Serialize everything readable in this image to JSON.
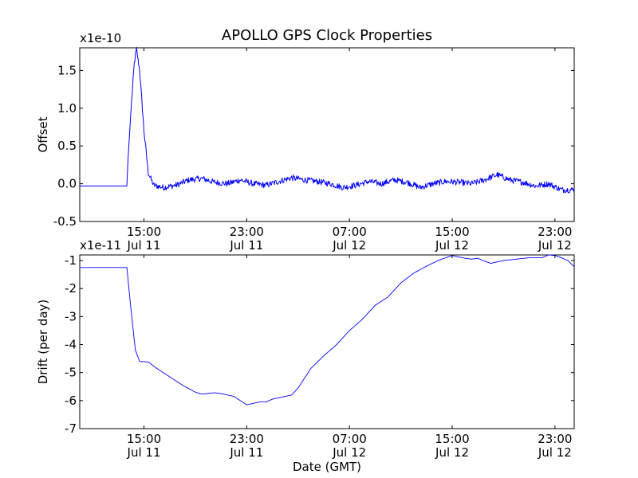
{
  "figure": {
    "title": "APOLLO GPS Clock Properties",
    "line_color": "#0000ff"
  },
  "chart_data": [
    {
      "type": "line",
      "panel": "top",
      "ylabel": "Offset",
      "xlabel": "",
      "y_scale_label": "x1e-10",
      "x_range": [
        "Jul 11 10:00",
        "Jul 13 00:30"
      ],
      "ylim": [
        -0.5,
        1.8
      ],
      "y_ticks": [
        {
          "value": -0.5,
          "label": "-0.5"
        },
        {
          "value": 0.0,
          "label": "0.0"
        },
        {
          "value": 0.5,
          "label": "0.5"
        },
        {
          "value": 1.0,
          "label": "1.0"
        },
        {
          "value": 1.5,
          "label": "1.5"
        }
      ],
      "x_ticks": [
        {
          "time": "Jul 11 15:00",
          "label_time": "15:00",
          "label_date": "Jul 11"
        },
        {
          "time": "Jul 11 23:00",
          "label_time": "23:00",
          "label_date": "Jul 11"
        },
        {
          "time": "Jul 12 07:00",
          "label_time": "07:00",
          "label_date": "Jul 12"
        },
        {
          "time": "Jul 12 15:00",
          "label_time": "15:00",
          "label_date": "Jul 12"
        },
        {
          "time": "Jul 12 23:00",
          "label_time": "23:00",
          "label_date": "Jul 12"
        }
      ],
      "series": [
        {
          "color": "#0000ff",
          "noise": 0.04,
          "points": [
            [
              "Jul 11 10:00",
              -0.03
            ],
            [
              "Jul 11 13:40",
              -0.03
            ],
            [
              "Jul 11 13:45",
              0.3
            ],
            [
              "Jul 11 14:00",
              1.0
            ],
            [
              "Jul 11 14:15",
              1.6
            ],
            [
              "Jul 11 14:25",
              1.78
            ],
            [
              "Jul 11 14:40",
              1.5
            ],
            [
              "Jul 11 15:00",
              0.7
            ],
            [
              "Jul 11 15:20",
              0.15
            ],
            [
              "Jul 11 15:45",
              -0.02
            ],
            [
              "Jul 11 16:30",
              -0.05
            ],
            [
              "Jul 11 17:30",
              -0.02
            ],
            [
              "Jul 11 18:30",
              0.05
            ],
            [
              "Jul 11 19:30",
              0.07
            ],
            [
              "Jul 11 20:30",
              0.02
            ],
            [
              "Jul 11 21:30",
              0.0
            ],
            [
              "Jul 11 22:30",
              0.05
            ],
            [
              "Jul 11 23:30",
              0.0
            ],
            [
              "Jul 12 00:30",
              -0.02
            ],
            [
              "Jul 12 01:30",
              0.03
            ],
            [
              "Jul 12 02:30",
              0.08
            ],
            [
              "Jul 12 03:30",
              0.05
            ],
            [
              "Jul 12 04:30",
              0.03
            ],
            [
              "Jul 12 05:30",
              0.0
            ],
            [
              "Jul 12 06:30",
              -0.05
            ],
            [
              "Jul 12 07:30",
              -0.02
            ],
            [
              "Jul 12 08:30",
              0.03
            ],
            [
              "Jul 12 09:30",
              0.0
            ],
            [
              "Jul 12 10:30",
              0.05
            ],
            [
              "Jul 12 11:30",
              0.02
            ],
            [
              "Jul 12 12:30",
              -0.05
            ],
            [
              "Jul 12 13:30",
              0.0
            ],
            [
              "Jul 12 14:30",
              0.03
            ],
            [
              "Jul 12 15:30",
              0.02
            ],
            [
              "Jul 12 16:30",
              0.0
            ],
            [
              "Jul 12 17:30",
              0.05
            ],
            [
              "Jul 12 18:30",
              0.12
            ],
            [
              "Jul 12 19:30",
              0.05
            ],
            [
              "Jul 12 20:30",
              0.02
            ],
            [
              "Jul 12 21:30",
              -0.03
            ],
            [
              "Jul 12 22:30",
              0.0
            ],
            [
              "Jul 12 23:30",
              -0.08
            ],
            [
              "Jul 13 00:30",
              -0.08
            ]
          ]
        }
      ]
    },
    {
      "type": "line",
      "panel": "bottom",
      "ylabel": "Drift (per day)",
      "xlabel": "Date (GMT)",
      "y_scale_label": "x1e-11",
      "x_range": [
        "Jul 11 10:00",
        "Jul 13 00:30"
      ],
      "ylim": [
        -7,
        -0.8
      ],
      "y_ticks": [
        {
          "value": -7,
          "label": "-7"
        },
        {
          "value": -6,
          "label": "-6"
        },
        {
          "value": -5,
          "label": "-5"
        },
        {
          "value": -4,
          "label": "-4"
        },
        {
          "value": -3,
          "label": "-3"
        },
        {
          "value": -2,
          "label": "-2"
        },
        {
          "value": -1,
          "label": "-1"
        }
      ],
      "x_ticks": [
        {
          "time": "Jul 11 15:00",
          "label_time": "15:00",
          "label_date": "Jul 11"
        },
        {
          "time": "Jul 11 23:00",
          "label_time": "23:00",
          "label_date": "Jul 11"
        },
        {
          "time": "Jul 12 07:00",
          "label_time": "07:00",
          "label_date": "Jul 12"
        },
        {
          "time": "Jul 12 15:00",
          "label_time": "15:00",
          "label_date": "Jul 12"
        },
        {
          "time": "Jul 12 23:00",
          "label_time": "23:00",
          "label_date": "Jul 12"
        }
      ],
      "series": [
        {
          "color": "#0000ff",
          "noise": 0,
          "points": [
            [
              "Jul 11 10:00",
              -1.25
            ],
            [
              "Jul 11 13:40",
              -1.25
            ],
            [
              "Jul 11 14:00",
              -2.8
            ],
            [
              "Jul 11 14:20",
              -4.2
            ],
            [
              "Jul 11 14:40",
              -4.6
            ],
            [
              "Jul 11 15:20",
              -4.62
            ],
            [
              "Jul 11 16:00",
              -4.85
            ],
            [
              "Jul 11 17:00",
              -5.15
            ],
            [
              "Jul 11 18:00",
              -5.45
            ],
            [
              "Jul 11 19:00",
              -5.7
            ],
            [
              "Jul 11 19:30",
              -5.77
            ],
            [
              "Jul 11 20:30",
              -5.72
            ],
            [
              "Jul 11 21:00",
              -5.75
            ],
            [
              "Jul 11 22:00",
              -5.85
            ],
            [
              "Jul 11 22:30",
              -6.0
            ],
            [
              "Jul 11 23:00",
              -6.15
            ],
            [
              "Jul 11 23:30",
              -6.1
            ],
            [
              "Jul 12 00:00",
              -6.05
            ],
            [
              "Jul 12 00:30",
              -6.05
            ],
            [
              "Jul 12 01:00",
              -5.95
            ],
            [
              "Jul 12 02:00",
              -5.85
            ],
            [
              "Jul 12 02:30",
              -5.8
            ],
            [
              "Jul 12 03:00",
              -5.55
            ],
            [
              "Jul 12 03:30",
              -5.2
            ],
            [
              "Jul 12 04:00",
              -4.85
            ],
            [
              "Jul 12 05:00",
              -4.4
            ],
            [
              "Jul 12 06:00",
              -4.0
            ],
            [
              "Jul 12 07:00",
              -3.5
            ],
            [
              "Jul 12 08:00",
              -3.1
            ],
            [
              "Jul 12 09:00",
              -2.6
            ],
            [
              "Jul 12 10:00",
              -2.3
            ],
            [
              "Jul 12 11:00",
              -1.8
            ],
            [
              "Jul 12 12:00",
              -1.45
            ],
            [
              "Jul 12 13:00",
              -1.2
            ],
            [
              "Jul 12 14:00",
              -0.98
            ],
            [
              "Jul 12 15:00",
              -0.82
            ],
            [
              "Jul 12 16:00",
              -0.92
            ],
            [
              "Jul 12 16:30",
              -0.95
            ],
            [
              "Jul 12 17:00",
              -0.92
            ],
            [
              "Jul 12 17:30",
              -1.02
            ],
            [
              "Jul 12 18:00",
              -1.1
            ],
            [
              "Jul 12 19:00",
              -1.0
            ],
            [
              "Jul 12 20:00",
              -0.95
            ],
            [
              "Jul 12 21:00",
              -0.9
            ],
            [
              "Jul 12 22:00",
              -0.9
            ],
            [
              "Jul 12 22:30",
              -0.8
            ],
            [
              "Jul 12 23:00",
              -0.82
            ],
            [
              "Jul 12 23:30",
              -0.9
            ],
            [
              "Jul 13 00:00",
              -1.0
            ],
            [
              "Jul 13 00:30",
              -1.22
            ]
          ]
        }
      ]
    }
  ]
}
